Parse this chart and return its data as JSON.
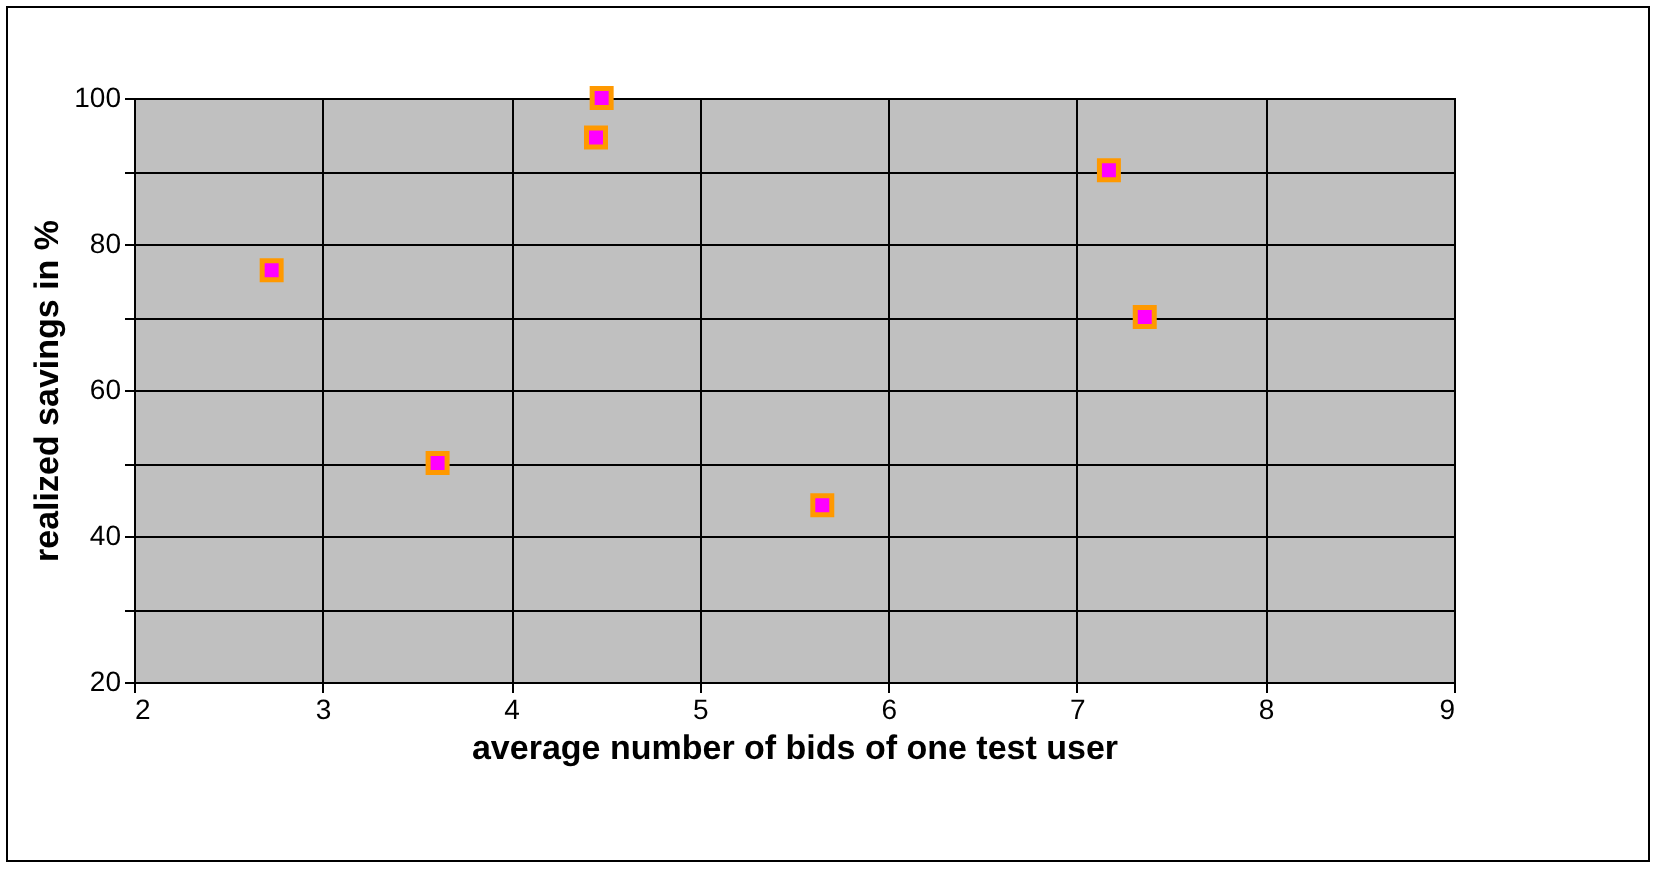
{
  "chart_data": {
    "type": "scatter",
    "xlabel": "average number of bids of one test user",
    "ylabel": "realized savings in %",
    "x": [
      2.73,
      3.61,
      4.48,
      4.45,
      5.65,
      7.17,
      7.36
    ],
    "values": [
      76.4,
      50,
      100,
      94.6,
      44.2,
      90.1,
      70
    ],
    "color": "#ff00ff",
    "marker": "square",
    "xlim": [
      2,
      9
    ],
    "xticks": [
      2,
      3,
      4,
      5,
      6,
      7,
      8,
      9
    ],
    "ylim": [
      20,
      100
    ],
    "yticks": [
      20,
      {
        "value": 30,
        "label": null
      },
      40,
      {
        "value": 50,
        "label": null
      },
      60,
      {
        "value": 70,
        "label": null
      },
      80,
      {
        "value": 90,
        "label": null
      },
      100
    ],
    "grid": true
  }
}
